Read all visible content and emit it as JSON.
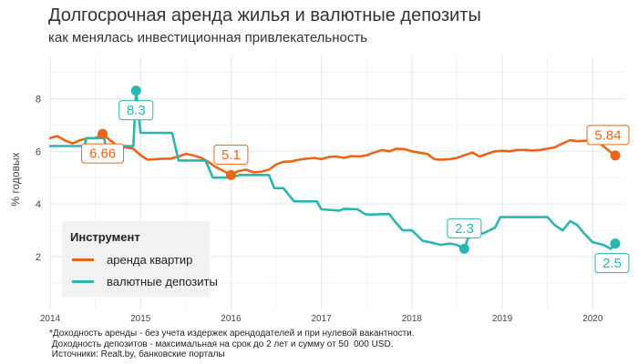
{
  "chart_data": {
    "type": "line",
    "title": "Долгосрочная аренда жилья и валютные депозиты",
    "subtitle": "как менялась инвестиционная привлекательность",
    "ylabel": "% годовых",
    "xlabel": "",
    "xlim": [
      2014.0,
      2020.35
    ],
    "ylim": [
      0,
      9.6
    ],
    "x_ticks": [
      "2014",
      "2015",
      "2016",
      "2017",
      "2018",
      "2019",
      "2020"
    ],
    "y_ticks": [
      "2",
      "4",
      "6",
      "8"
    ],
    "grid": true,
    "legend_title": "Инструмент",
    "legend_position": "bottom-left",
    "caption": "*Доходность аренды - без учета издержек арендодателей и при нулевой вакантности.\n Доходность депозитов - максимальная на срок до 2 лет и сумму от 50  000 USD.\n Источники: Realt.by, банковские порталы",
    "series": [
      {
        "name": "аренда квартир",
        "color": "#e8661a",
        "x": [
          2014.0,
          2014.08,
          2014.17,
          2014.25,
          2014.33,
          2014.42,
          2014.5,
          2014.58,
          2014.67,
          2014.75,
          2014.83,
          2014.92,
          2015.0,
          2015.08,
          2015.17,
          2015.25,
          2015.33,
          2015.42,
          2015.5,
          2015.58,
          2015.67,
          2015.75,
          2015.83,
          2015.92,
          2016.0,
          2016.08,
          2016.17,
          2016.25,
          2016.33,
          2016.42,
          2016.5,
          2016.58,
          2016.67,
          2016.75,
          2016.83,
          2016.92,
          2017.0,
          2017.08,
          2017.17,
          2017.25,
          2017.33,
          2017.42,
          2017.5,
          2017.58,
          2017.67,
          2017.75,
          2017.83,
          2017.92,
          2018.0,
          2018.08,
          2018.17,
          2018.25,
          2018.33,
          2018.42,
          2018.5,
          2018.58,
          2018.67,
          2018.75,
          2018.83,
          2018.92,
          2019.0,
          2019.08,
          2019.17,
          2019.25,
          2019.33,
          2019.42,
          2019.5,
          2019.58,
          2019.67,
          2019.75,
          2019.83,
          2019.92,
          2020.0,
          2020.08,
          2020.17,
          2020.25
        ],
        "values": [
          6.5,
          6.58,
          6.4,
          6.3,
          6.42,
          6.5,
          6.5,
          6.66,
          6.4,
          6.2,
          6.15,
          6.1,
          5.85,
          5.68,
          5.7,
          5.72,
          5.72,
          5.8,
          5.9,
          5.85,
          5.75,
          5.6,
          5.4,
          5.25,
          5.1,
          5.25,
          5.3,
          5.2,
          5.22,
          5.3,
          5.5,
          5.6,
          5.62,
          5.68,
          5.72,
          5.75,
          5.7,
          5.78,
          5.8,
          5.75,
          5.82,
          5.8,
          5.85,
          5.95,
          6.05,
          6.0,
          6.1,
          6.08,
          6.0,
          5.95,
          5.9,
          5.7,
          5.68,
          5.7,
          5.75,
          5.85,
          5.95,
          5.8,
          5.9,
          6.0,
          6.02,
          6.0,
          6.05,
          6.05,
          6.03,
          6.05,
          6.1,
          6.15,
          6.3,
          6.42,
          6.38,
          6.4,
          6.42,
          6.3,
          6.05,
          5.84
        ]
      },
      {
        "name": "валютные депозиты",
        "color": "#2bb5b0",
        "x": [
          2014.0,
          2014.38,
          2014.4,
          2014.6,
          2014.62,
          2014.76,
          2014.78,
          2014.92,
          2014.95,
          2015.0,
          2015.35,
          2015.42,
          2015.72,
          2015.8,
          2016.0,
          2016.1,
          2016.42,
          2016.48,
          2016.58,
          2016.65,
          2016.7,
          2016.95,
          2017.0,
          2017.2,
          2017.25,
          2017.4,
          2017.48,
          2017.52,
          2017.75,
          2017.82,
          2017.9,
          2018.0,
          2018.12,
          2018.2,
          2018.32,
          2018.42,
          2018.5,
          2018.58,
          2018.62,
          2018.75,
          2018.8,
          2018.92,
          2018.98,
          2019.28,
          2019.5,
          2019.58,
          2019.67,
          2019.75,
          2019.83,
          2019.9,
          2020.0,
          2020.12,
          2020.2,
          2020.25
        ],
        "values": [
          6.2,
          6.2,
          6.5,
          6.5,
          6.0,
          6.0,
          6.2,
          6.2,
          8.3,
          6.7,
          6.7,
          5.65,
          5.65,
          5.0,
          5.0,
          5.1,
          5.1,
          4.6,
          4.6,
          4.3,
          4.1,
          4.1,
          3.8,
          3.75,
          3.82,
          3.8,
          3.62,
          3.6,
          3.62,
          3.3,
          3.0,
          3.0,
          2.6,
          2.55,
          2.45,
          2.5,
          2.45,
          2.3,
          2.7,
          2.85,
          2.9,
          3.1,
          3.5,
          3.5,
          3.5,
          3.2,
          3.0,
          3.35,
          3.2,
          2.9,
          2.55,
          2.45,
          2.3,
          2.5
        ]
      }
    ],
    "annotations": [
      {
        "series": 0,
        "x": 2014.58,
        "y": 6.66,
        "label": "6.66",
        "pos": "below"
      },
      {
        "series": 0,
        "x": 2016.0,
        "y": 5.1,
        "label": "5.1",
        "pos": "above"
      },
      {
        "series": 0,
        "x": 2020.25,
        "y": 5.84,
        "label": "5.84",
        "pos": "above"
      },
      {
        "series": 1,
        "x": 2014.95,
        "y": 8.3,
        "label": "8.3",
        "pos": "below"
      },
      {
        "series": 1,
        "x": 2018.58,
        "y": 2.3,
        "label": "2.3",
        "pos": "above"
      },
      {
        "series": 1,
        "x": 2020.25,
        "y": 2.5,
        "label": "2.5",
        "pos": "below"
      }
    ]
  }
}
